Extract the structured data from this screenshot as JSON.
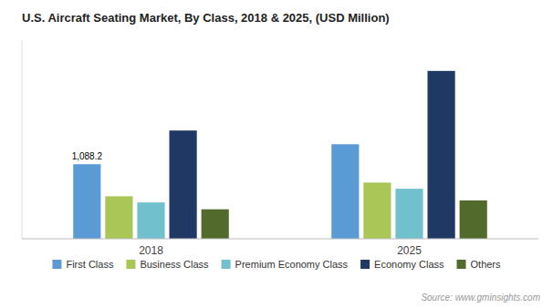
{
  "chart_data": {
    "type": "bar",
    "title": "U.S. Aircraft Seating Market, By Class, 2018 & 2025, (USD Million)",
    "categories": [
      "2018",
      "2025"
    ],
    "series": [
      {
        "name": "First Class",
        "color": "#5b9bd5",
        "values": [
          1088.2,
          1380
        ]
      },
      {
        "name": "Business Class",
        "color": "#a9c657",
        "values": [
          620,
          820
        ]
      },
      {
        "name": "Premium Economy Class",
        "color": "#70c1cd",
        "values": [
          530,
          730
        ]
      },
      {
        "name": "Economy Class",
        "color": "#1f3864",
        "values": [
          1580,
          2450
        ]
      },
      {
        "name": "Others",
        "color": "#526b2d",
        "values": [
          430,
          560
        ]
      }
    ],
    "ylim": [
      0,
      2900
    ],
    "tick_labels": "x",
    "grid": false,
    "legend": "bottom",
    "annotations": [
      {
        "text": "1,088.2",
        "x": "2018",
        "y": 1088.2
      }
    ],
    "source": "Source: www.gminsights.com"
  }
}
